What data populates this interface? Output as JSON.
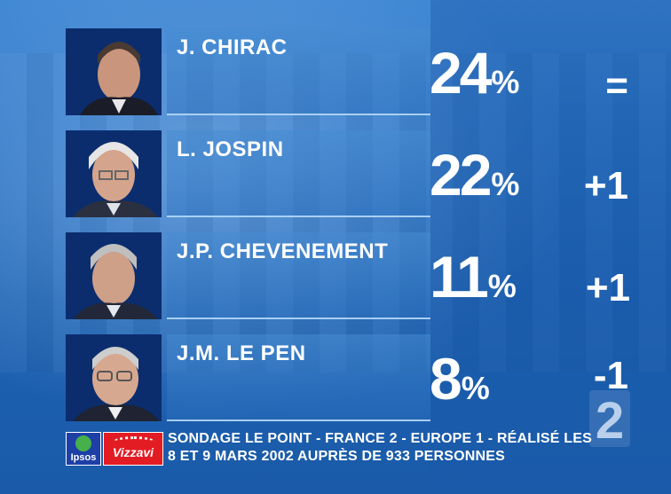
{
  "candidates": [
    {
      "name": "J. CHIRAC",
      "percent": "24",
      "sign": "%",
      "change": "="
    },
    {
      "name": "L. JOSPIN",
      "percent": "22",
      "sign": "%",
      "change": "+1"
    },
    {
      "name": "J.P. CHEVENEMENT",
      "percent": "11",
      "sign": "%",
      "change": "+1"
    },
    {
      "name": "J.M. LE PEN",
      "percent": "8",
      "sign": "%",
      "change": "-1"
    }
  ],
  "footer": {
    "ipsos_logo": "Ipsos",
    "vizzavi_logo": "Vizzavi",
    "source_line1": "SONDAGE LE POINT - FRANCE 2 - EUROPE 1 - RÉALISÉ LES",
    "source_line2": "8 ET 9 MARS 2002 AUPRÈS DE 933 PERSONNES"
  },
  "channel_logo": "2",
  "colors": {
    "background": "#1f6cbf",
    "ipsos": "#1d3fa6",
    "vizzavi": "#e31b23"
  }
}
